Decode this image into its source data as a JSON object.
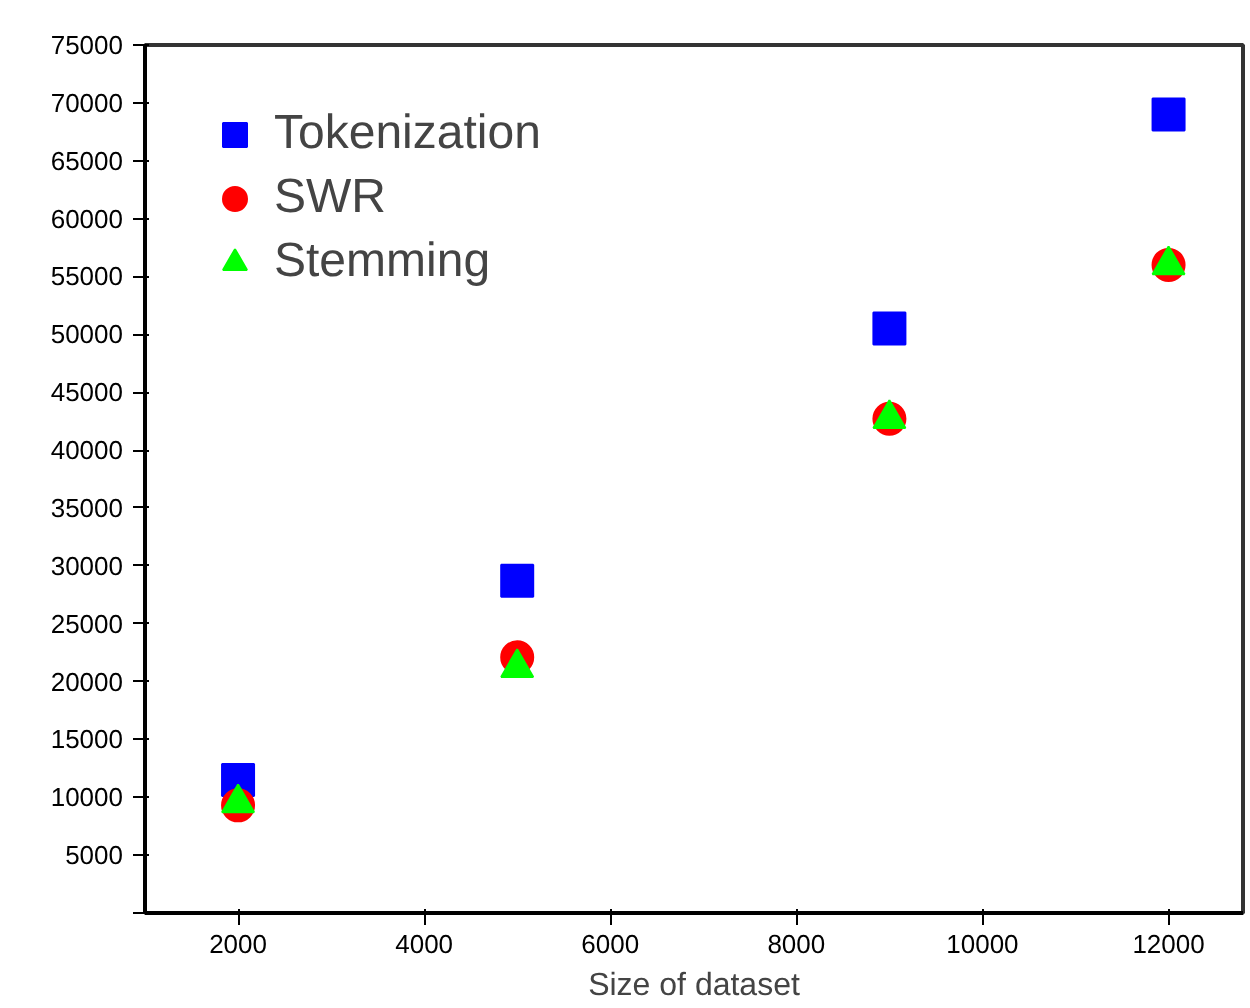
{
  "chart_data": {
    "type": "scatter",
    "xlabel": "Size of dataset",
    "x": [
      2000,
      5000,
      9000,
      12000
    ],
    "series": [
      {
        "name": "Tokenization",
        "color": "#0000ff",
        "marker": "square",
        "values": [
          11500,
          28700,
          50500,
          69000
        ]
      },
      {
        "name": "SWR",
        "color": "#ff0000",
        "marker": "circle",
        "values": [
          9300,
          22100,
          42700,
          56000
        ]
      },
      {
        "name": "Stemming",
        "color": "#00ff00",
        "marker": "triangle",
        "values": [
          9500,
          21200,
          42700,
          56000
        ]
      }
    ],
    "xlim": [
      1000,
      12800
    ],
    "ylim": [
      0,
      75000
    ],
    "xticks": [
      2000,
      4000,
      6000,
      8000,
      10000,
      12000
    ],
    "yticks": [
      {
        "value": 0,
        "label": null
      },
      5000,
      10000,
      15000,
      20000,
      25000,
      30000,
      35000,
      40000,
      45000,
      50000,
      55000,
      60000,
      65000,
      70000,
      75000
    ],
    "grid": false,
    "legend": "top left"
  }
}
